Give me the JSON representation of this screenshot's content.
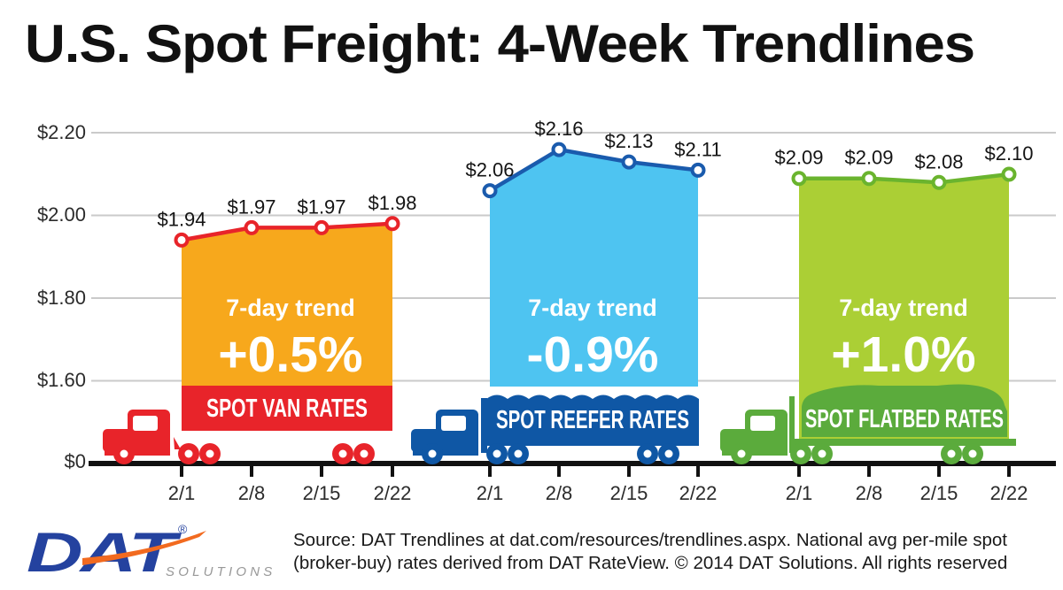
{
  "title": "U.S. Spot Freight: 4-Week Trendlines",
  "y_axis": {
    "tick_labels": [
      "$2.20",
      "$2.00",
      "$1.80",
      "$1.60",
      "$0"
    ]
  },
  "chart_data": [
    {
      "type": "area",
      "name": "Spot Van Rates",
      "banner_label": "SPOT VAN RATES",
      "trend_label": "7-day trend",
      "trend_value": "+0.5%",
      "categories": [
        "2/1",
        "2/8",
        "2/15",
        "2/22"
      ],
      "values": [
        1.94,
        1.97,
        1.97,
        1.98
      ],
      "value_labels": [
        "$1.94",
        "$1.97",
        "$1.97",
        "$1.98"
      ],
      "colors": {
        "area": "#F7A81C",
        "line": "#E8242A",
        "banner": "#E8242A",
        "truck": "#E8242A"
      }
    },
    {
      "type": "area",
      "name": "Spot Reefer Rates",
      "banner_label": "SPOT REEFER RATES",
      "trend_label": "7-day trend",
      "trend_value": "-0.9%",
      "categories": [
        "2/1",
        "2/8",
        "2/15",
        "2/22"
      ],
      "values": [
        2.06,
        2.16,
        2.13,
        2.11
      ],
      "value_labels": [
        "$2.06",
        "$2.16",
        "$2.13",
        "$2.11"
      ],
      "colors": {
        "area": "#4EC4F1",
        "line": "#1A5BAD",
        "banner": "#0F57A5",
        "truck": "#0F57A5"
      }
    },
    {
      "type": "area",
      "name": "Spot Flatbed Rates",
      "banner_label": "SPOT FLATBED RATES",
      "trend_label": "7-day trend",
      "trend_value": "+1.0%",
      "categories": [
        "2/1",
        "2/8",
        "2/15",
        "2/22"
      ],
      "values": [
        2.09,
        2.09,
        2.08,
        2.1
      ],
      "value_labels": [
        "$2.09",
        "$2.09",
        "$2.08",
        "$2.10"
      ],
      "colors": {
        "area": "#ABCF35",
        "line": "#6AB42E",
        "banner": "#5BAB3C",
        "truck": "#5BAB3C"
      }
    }
  ],
  "axis_meta": {
    "ylim": [
      0,
      2.2
    ],
    "y_ticks": [
      2.2,
      2.0,
      1.8,
      1.6,
      0
    ],
    "y_axis_break": true,
    "grid": true,
    "currency": "USD per mile"
  },
  "footer": {
    "logo": {
      "text": "DAT",
      "registered": "®",
      "subtext": "SOLUTIONS",
      "blue": "#24429F",
      "orange": "#F26A1F"
    },
    "source_line1": "Source: DAT Trendlines at dat.com/resources/trendlines.aspx. National avg per-mile spot",
    "source_line2": "(broker-buy) rates derived from DAT RateView. © 2014 DAT Solutions. All rights reserved"
  }
}
